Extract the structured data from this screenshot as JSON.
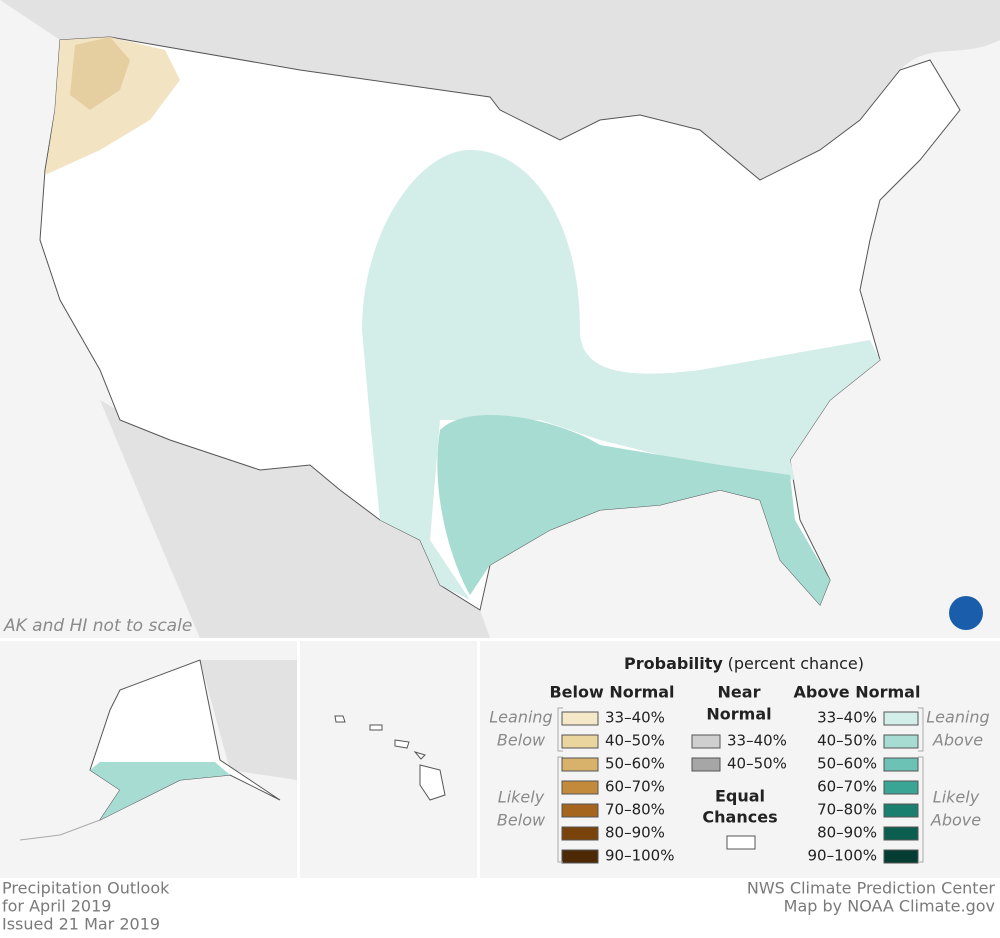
{
  "map": {
    "note": "AK and HI not to scale"
  },
  "legend": {
    "title": "Probability",
    "subtitle": "(percent chance)",
    "below_normal": {
      "heading": "Below Normal",
      "leaning_label": [
        "Leaning",
        "Below"
      ],
      "likely_label": [
        "Likely",
        "Below"
      ],
      "items": [
        {
          "label": "33–40%",
          "color": "#f4e8c8"
        },
        {
          "label": "40–50%",
          "color": "#ead59f"
        },
        {
          "label": "50–60%",
          "color": "#d8b26a"
        },
        {
          "label": "60–70%",
          "color": "#c48a3c"
        },
        {
          "label": "70–80%",
          "color": "#a5651f"
        },
        {
          "label": "80–90%",
          "color": "#7a430c"
        },
        {
          "label": "90–100%",
          "color": "#4d2906"
        }
      ]
    },
    "near_normal": {
      "heading": [
        "Near",
        "Normal"
      ],
      "items": [
        {
          "label": "33–40%",
          "color": "#cfcfcf"
        },
        {
          "label": "40–50%",
          "color": "#a6a6a6"
        }
      ]
    },
    "equal_chances": {
      "heading": [
        "Equal",
        "Chances"
      ],
      "color": "#ffffff"
    },
    "above_normal": {
      "heading": "Above Normal",
      "leaning_label": [
        "Leaning",
        "Above"
      ],
      "likely_label": [
        "Likely",
        "Above"
      ],
      "items": [
        {
          "label": "33–40%",
          "color": "#d3ede8"
        },
        {
          "label": "40–50%",
          "color": "#a7dcd3"
        },
        {
          "label": "50–60%",
          "color": "#6cc2b4"
        },
        {
          "label": "60–70%",
          "color": "#3aa595"
        },
        {
          "label": "70–80%",
          "color": "#1b7f70"
        },
        {
          "label": "80–90%",
          "color": "#0c5e50"
        },
        {
          "label": "90–100%",
          "color": "#053d33"
        }
      ]
    }
  },
  "footer": {
    "left": [
      "Precipitation Outlook",
      "for April 2019",
      "Issued 21 Mar 2019"
    ],
    "right": [
      "NWS Climate Prediction Center",
      "Map by NOAA Climate.gov"
    ]
  }
}
